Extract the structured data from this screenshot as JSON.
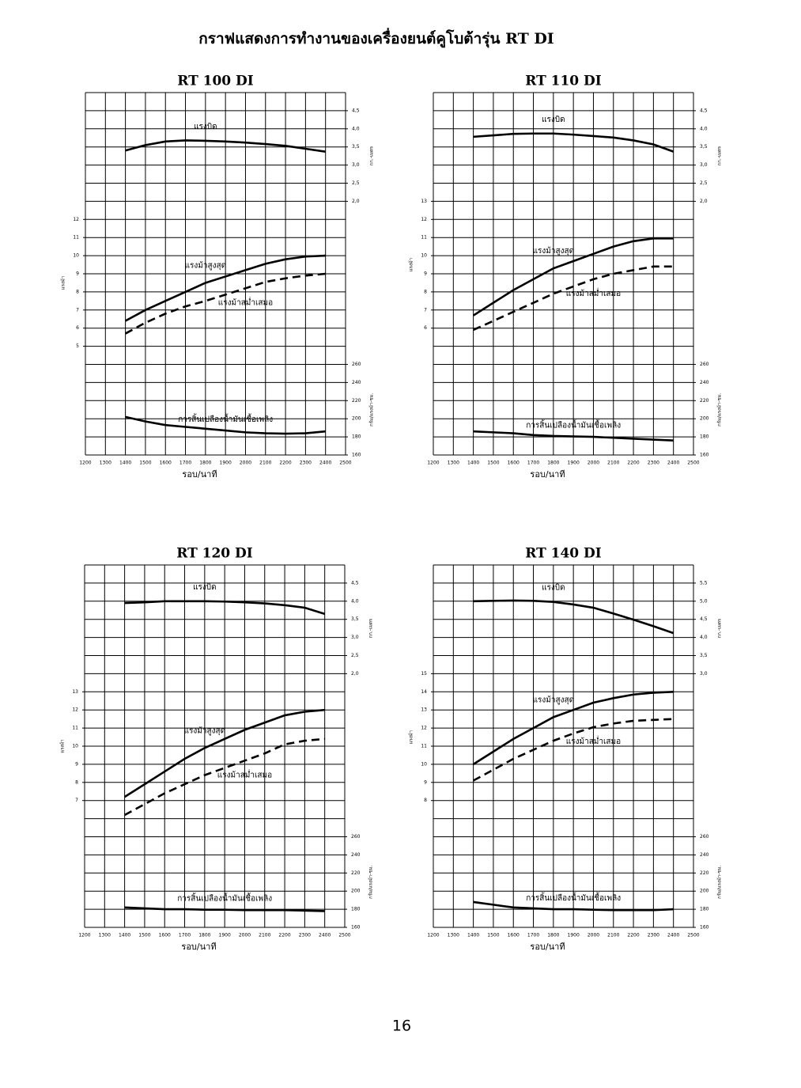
{
  "page": {
    "title": "กราฟแสดงการทำงานของเครื่องยนต์คูโบต้ารุ่น RT DI",
    "page_number": "16"
  },
  "chart_data": [
    {
      "type": "line",
      "title": "RT 100 DI",
      "x_label": "รอบ/นาที",
      "y_label": "แรงม้า",
      "y2_label": "กก.-เมตร",
      "y3_label": "กรัม/แรงม้า-ชม.",
      "x": [
        1400,
        1500,
        1600,
        1700,
        1800,
        1900,
        2000,
        2100,
        2200,
        2300,
        2400
      ],
      "xlim": [
        1200,
        2500
      ],
      "xticks": [
        1200,
        1300,
        1400,
        1500,
        1600,
        1700,
        1800,
        1900,
        2000,
        2100,
        2200,
        2300,
        2400,
        2500
      ],
      "ylim": [
        -1,
        19
      ],
      "yticks": [
        5,
        6,
        7,
        8,
        9,
        10,
        11,
        12
      ],
      "y2lim": [
        -5,
        5
      ],
      "y2ticks": [
        {
          "value": 2.0,
          "label": "2,0"
        },
        {
          "value": 2.5,
          "label": "2,5"
        },
        {
          "value": 3.0,
          "label": "3,0"
        },
        {
          "value": 3.5,
          "label": "3,5"
        },
        {
          "value": 4.0,
          "label": "4,0"
        },
        {
          "value": 4.5,
          "label": "4,5"
        }
      ],
      "y3lim": [
        160,
        560
      ],
      "y3ticks": [
        160,
        180,
        200,
        220,
        240,
        260
      ],
      "grid": true,
      "series": [
        {
          "name": "แรงบิด",
          "color": "#000000",
          "dash": false,
          "axis": "y2",
          "values": [
            3.4,
            3.55,
            3.65,
            3.68,
            3.67,
            3.65,
            3.62,
            3.58,
            3.53,
            3.45,
            3.37
          ]
        },
        {
          "name": "แรงม้าสูงสุด",
          "color": "#000000",
          "dash": false,
          "axis": "y",
          "values": [
            6.4,
            7.0,
            7.5,
            8.0,
            8.5,
            8.85,
            9.2,
            9.55,
            9.8,
            9.95,
            10.0
          ]
        },
        {
          "name": "แรงม้าสม่ำเสมอ",
          "color": "#000000",
          "dash": true,
          "axis": "y",
          "values": [
            5.7,
            6.3,
            6.8,
            7.2,
            7.5,
            7.85,
            8.2,
            8.55,
            8.75,
            8.9,
            9.0
          ]
        },
        {
          "name": "การสิ้นเปลืองน้ำมันเชื้อเพลิง",
          "color": "#000000",
          "dash": false,
          "axis": "y3",
          "values": [
            202,
            197,
            193,
            191,
            189,
            187,
            185,
            184,
            183.5,
            184,
            186
          ]
        }
      ]
    },
    {
      "type": "line",
      "title": "RT 110 DI",
      "x_label": "รอบ/นาที",
      "y_label": "แรงม้า",
      "y2_label": "กก.-เมตร",
      "y3_label": "กรัม/แรงม้า-ชม.",
      "x": [
        1400,
        1500,
        1600,
        1700,
        1800,
        1900,
        2000,
        2100,
        2200,
        2300,
        2400
      ],
      "xlim": [
        1200,
        2500
      ],
      "xticks": [
        1200,
        1300,
        1400,
        1500,
        1600,
        1700,
        1800,
        1900,
        2000,
        2100,
        2200,
        2300,
        2400,
        2500
      ],
      "ylim": [
        -1,
        19
      ],
      "yticks": [
        6,
        7,
        8,
        9,
        10,
        11,
        12,
        13
      ],
      "y2lim": [
        -5,
        5
      ],
      "y2ticks": [
        {
          "value": 2.0,
          "label": "2,0"
        },
        {
          "value": 2.5,
          "label": "2,5"
        },
        {
          "value": 3.0,
          "label": "3,0"
        },
        {
          "value": 3.5,
          "label": "3,5"
        },
        {
          "value": 4.0,
          "label": "4,0"
        },
        {
          "value": 4.5,
          "label": "4,5"
        }
      ],
      "y3lim": [
        160,
        560
      ],
      "y3ticks": [
        160,
        180,
        200,
        220,
        240,
        260
      ],
      "grid": true,
      "series": [
        {
          "name": "แรงบิด",
          "color": "#000000",
          "dash": false,
          "axis": "y2",
          "values": [
            3.78,
            3.82,
            3.86,
            3.87,
            3.87,
            3.84,
            3.8,
            3.76,
            3.68,
            3.57,
            3.37
          ]
        },
        {
          "name": "แรงม้าสูงสุด",
          "color": "#000000",
          "dash": false,
          "axis": "y",
          "values": [
            6.7,
            7.4,
            8.1,
            8.7,
            9.3,
            9.7,
            10.1,
            10.5,
            10.8,
            10.95,
            10.95
          ]
        },
        {
          "name": "แรงม้าสม่ำเสมอ",
          "color": "#000000",
          "dash": true,
          "axis": "y",
          "values": [
            5.9,
            6.4,
            6.9,
            7.4,
            7.9,
            8.3,
            8.7,
            9.0,
            9.2,
            9.4,
            9.4
          ]
        },
        {
          "name": "การสิ้นเปลืองน้ำมันเชื้อเพลิง",
          "color": "#000000",
          "dash": false,
          "axis": "y3",
          "values": [
            186,
            185,
            184,
            182,
            181,
            180.5,
            180,
            179,
            178,
            177,
            176
          ]
        }
      ]
    },
    {
      "type": "line",
      "title": "RT 120 DI",
      "x_label": "รอบ/นาที",
      "y_label": "แรงม้า",
      "y2_label": "กก.-เมตร",
      "y3_label": "กรัม/แรงม้า-ชม.",
      "x": [
        1400,
        1500,
        1600,
        1700,
        1800,
        1900,
        2000,
        2100,
        2200,
        2300,
        2400
      ],
      "xlim": [
        1200,
        2500
      ],
      "xticks": [
        1200,
        1300,
        1400,
        1500,
        1600,
        1700,
        1800,
        1900,
        2000,
        2100,
        2200,
        2300,
        2400,
        2500
      ],
      "ylim": [
        0,
        20
      ],
      "yticks": [
        7,
        8,
        9,
        10,
        11,
        12,
        13
      ],
      "y2lim": [
        -5,
        5
      ],
      "y2ticks": [
        {
          "value": 2.0,
          "label": "2,0"
        },
        {
          "value": 2.5,
          "label": "2,5"
        },
        {
          "value": 3.0,
          "label": "3,0"
        },
        {
          "value": 3.5,
          "label": "3,5"
        },
        {
          "value": 4.0,
          "label": "4,0"
        },
        {
          "value": 4.5,
          "label": "4,5"
        }
      ],
      "y3lim": [
        160,
        560
      ],
      "y3ticks": [
        160,
        180,
        200,
        220,
        240,
        260
      ],
      "grid": true,
      "series": [
        {
          "name": "แรงบิด",
          "color": "#000000",
          "dash": false,
          "axis": "y2",
          "values": [
            3.95,
            3.97,
            4.0,
            4.0,
            4.0,
            3.99,
            3.97,
            3.94,
            3.89,
            3.82,
            3.65
          ]
        },
        {
          "name": "แรงม้าสูงสุด",
          "color": "#000000",
          "dash": false,
          "axis": "y",
          "values": [
            7.2,
            7.9,
            8.6,
            9.3,
            9.9,
            10.4,
            10.9,
            11.3,
            11.7,
            11.9,
            12.0
          ]
        },
        {
          "name": "แรงม้าสม่ำเสมอ",
          "color": "#000000",
          "dash": true,
          "axis": "y",
          "values": [
            6.2,
            6.8,
            7.4,
            7.9,
            8.4,
            8.8,
            9.2,
            9.6,
            10.1,
            10.3,
            10.4
          ]
        },
        {
          "name": "การสิ้นเปลืองน้ำมันเชื้อเพลิง",
          "color": "#000000",
          "dash": false,
          "axis": "y3",
          "values": [
            182,
            181,
            180,
            180,
            179.5,
            179.5,
            179,
            179,
            179,
            178.5,
            178
          ]
        }
      ]
    },
    {
      "type": "line",
      "title": "RT 140 DI",
      "x_label": "รอบ/นาที",
      "y_label": "แรงม้า",
      "y2_label": "กก.-เมตร",
      "y3_label": "กรัม/แรงม้า-ชม.",
      "x": [
        1400,
        1500,
        1600,
        1700,
        1800,
        1900,
        2000,
        2100,
        2200,
        2300,
        2400
      ],
      "xlim": [
        1200,
        2500
      ],
      "xticks": [
        1200,
        1300,
        1400,
        1500,
        1600,
        1700,
        1800,
        1900,
        2000,
        2100,
        2200,
        2300,
        2400,
        2500
      ],
      "ylim": [
        1,
        21
      ],
      "yticks": [
        8,
        9,
        10,
        11,
        12,
        13,
        14,
        15
      ],
      "y2lim": [
        -4,
        6
      ],
      "y2ticks": [
        {
          "value": 3.0,
          "label": "3,0"
        },
        {
          "value": 3.5,
          "label": "3,5"
        },
        {
          "value": 4.0,
          "label": "4,0"
        },
        {
          "value": 4.5,
          "label": "4,5"
        },
        {
          "value": 5.0,
          "label": "5,0"
        },
        {
          "value": 5.5,
          "label": "5,5"
        }
      ],
      "y3lim": [
        160,
        560
      ],
      "y3ticks": [
        160,
        180,
        200,
        220,
        240,
        260
      ],
      "grid": true,
      "series": [
        {
          "name": "แรงบิด",
          "color": "#000000",
          "dash": false,
          "axis": "y2",
          "values": [
            5.0,
            5.01,
            5.02,
            5.01,
            4.98,
            4.91,
            4.82,
            4.66,
            4.49,
            4.31,
            4.12
          ]
        },
        {
          "name": "แรงม้าสูงสุด",
          "color": "#000000",
          "dash": false,
          "axis": "y",
          "values": [
            10.0,
            10.7,
            11.4,
            12.0,
            12.6,
            13.0,
            13.4,
            13.65,
            13.85,
            13.95,
            14.0
          ]
        },
        {
          "name": "แรงม้าสม่ำเสมอ",
          "color": "#000000",
          "dash": true,
          "axis": "y",
          "values": [
            9.1,
            9.7,
            10.3,
            10.8,
            11.3,
            11.7,
            12.05,
            12.25,
            12.4,
            12.45,
            12.5
          ]
        },
        {
          "name": "การสิ้นเปลืองน้ำมันเชื้อเพลิง",
          "color": "#000000",
          "dash": false,
          "axis": "y3",
          "values": [
            188,
            185,
            182,
            181,
            180,
            180,
            179.5,
            179,
            179,
            179,
            180
          ]
        }
      ]
    }
  ]
}
